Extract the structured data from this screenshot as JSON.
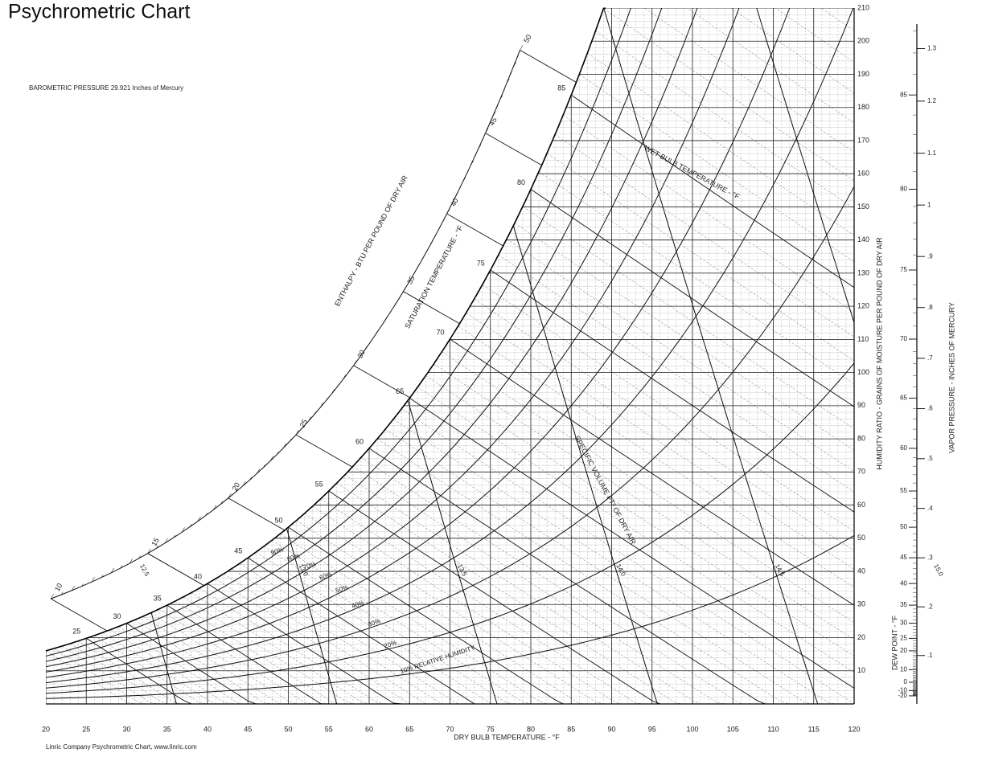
{
  "chart_data": {
    "type": "psychrometric",
    "title": "Psychrometric Chart",
    "pressure_label": "BAROMETRIC PRESSURE",
    "pressure": 29.921,
    "pressure_unit": "Inches of Mercury",
    "xlabel": "DRY BULB TEMPERATURE - °F",
    "ylabel": "HUMIDITY RATIO - GRAINS OF MOISTURE PER POUND OF DRY AIR",
    "xlim": [
      20,
      120
    ],
    "xticks": [
      20,
      25,
      30,
      35,
      40,
      45,
      50,
      55,
      60,
      65,
      70,
      75,
      80,
      85,
      90,
      95,
      100,
      105,
      110,
      115,
      120
    ],
    "ylim": [
      0,
      210
    ],
    "yticks": [
      10,
      20,
      30,
      40,
      50,
      60,
      70,
      80,
      90,
      100,
      110,
      120,
      130,
      140,
      150,
      160,
      170,
      180,
      190,
      200,
      210
    ],
    "rh_lines": {
      "values": [
        10,
        20,
        30,
        40,
        50,
        60,
        70,
        80,
        90
      ],
      "value_labels": [
        "10% RELATIVE HUMIDITY",
        "20%",
        "30%",
        "40%",
        "50%",
        "60%",
        "70%",
        "80%",
        "90%"
      ]
    },
    "wet_bulb_label": "WET BULB TEMPERATURE - °F",
    "saturation_label": "SATURATION TEMPERATURE - °F",
    "wet_bulb_lines": [
      25,
      30,
      35,
      40,
      45,
      50,
      55,
      60,
      65,
      70,
      75,
      80,
      85
    ],
    "enthalpy_label": "ENTHALPY - BTU PER POUND OF DRY AIR",
    "enthalpy_scale": [
      10,
      15,
      20,
      25,
      30,
      35,
      40,
      45,
      50
    ],
    "volume_label": "SPECIFIC VOLUME FT³ OF DRY AIR",
    "volume_lines": {
      "values": [
        12.5,
        13,
        13.5,
        14,
        14.5,
        15
      ],
      "value_labels": [
        "12.5",
        "13.0",
        "13.5",
        "14.0",
        "14.5",
        "15.0"
      ]
    },
    "dew_point_label": "DEW POINT - °F",
    "dew_point_ticks": [
      -20,
      -10,
      0,
      10,
      20,
      25,
      30,
      35,
      40,
      45,
      50,
      55,
      60,
      65,
      70,
      75,
      80,
      85
    ],
    "vapor_pressure_label": "VAPOR PRESSURE - INCHES OF MERCURY",
    "vapor_pressure_ticks": [
      {
        "value": 0.1,
        "label": ".1"
      },
      {
        "value": 0.2,
        "label": ".2"
      },
      {
        "value": 0.3,
        "label": ".3"
      },
      {
        "value": 0.4,
        "label": ".4"
      },
      {
        "value": 0.5,
        "label": ".5"
      },
      {
        "value": 0.6,
        "label": ".6"
      },
      {
        "value": 0.7,
        "label": ".7"
      },
      {
        "value": 0.8,
        "label": ".8"
      },
      {
        "value": 0.9,
        "label": ".9"
      },
      1,
      1.1,
      1.2,
      1.3
    ],
    "footer": "Linric Company Psychrometric Chart, www.linric.com"
  }
}
